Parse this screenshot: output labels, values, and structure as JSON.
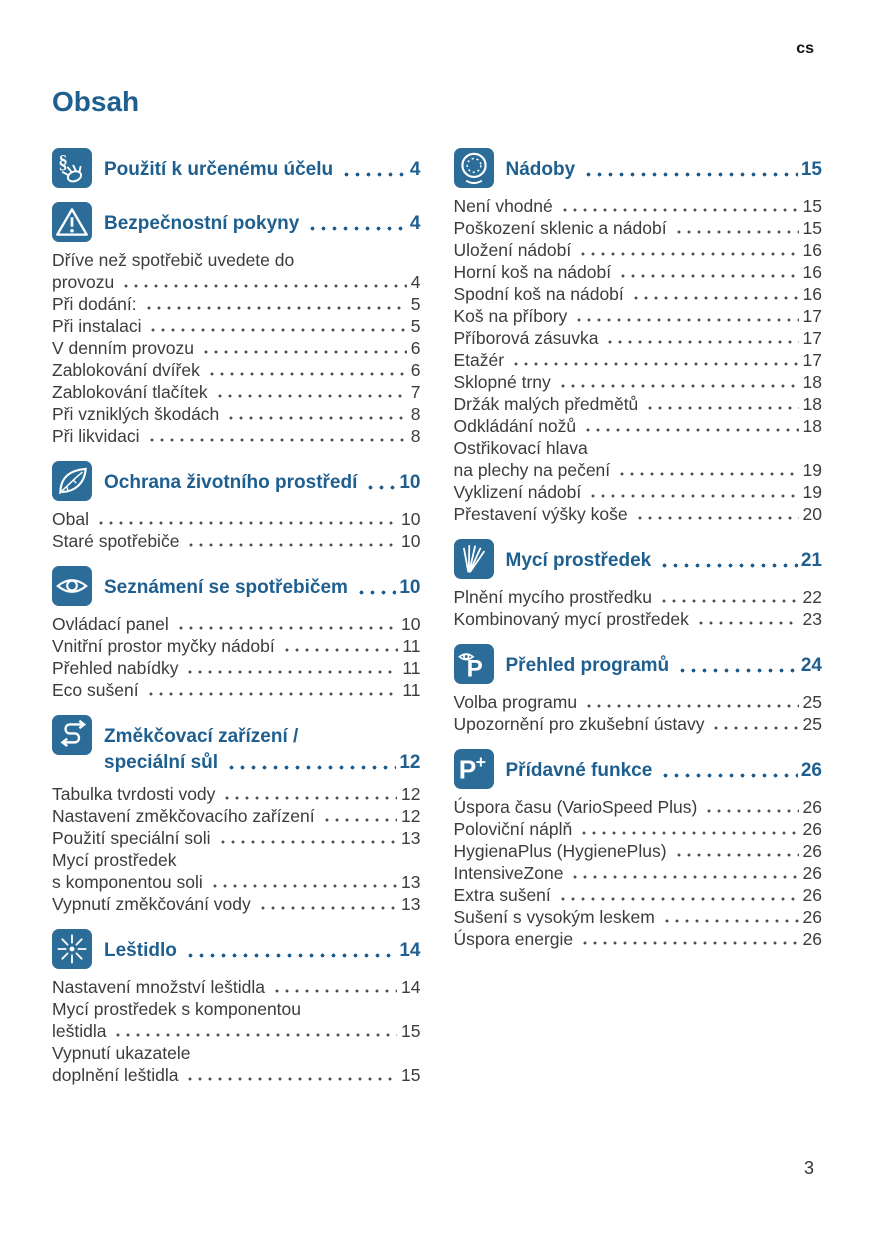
{
  "page": {
    "lang_tag": "cs",
    "title": "Obsah",
    "page_number": "3"
  },
  "colors": {
    "accent_blue": "#1e5f8f",
    "icon_background_blue": "#2b6c98",
    "body_text": "#3c3c3c"
  },
  "columns": [
    {
      "sections": [
        {
          "icon": "paragraph-hand-icon",
          "title_lines": [
            "Použití k určenému účelu"
          ],
          "page": "4",
          "entries": []
        },
        {
          "icon": "warning-triangle-icon",
          "title_lines": [
            "Bezpečnostní pokyny"
          ],
          "page": "4",
          "entries": [
            {
              "lines": [
                "Dříve než spotřebič uvedete do",
                "provozu"
              ],
              "page": "4"
            },
            {
              "lines": [
                "Při dodání:"
              ],
              "page": "5"
            },
            {
              "lines": [
                "Při instalaci"
              ],
              "page": "5"
            },
            {
              "lines": [
                "V denním provozu"
              ],
              "page": "6"
            },
            {
              "lines": [
                "Zablokování dvířek"
              ],
              "page": "6"
            },
            {
              "lines": [
                "Zablokování tlačítek"
              ],
              "page": "7"
            },
            {
              "lines": [
                "Při vzniklých škodách"
              ],
              "page": "8"
            },
            {
              "lines": [
                "Při likvidaci"
              ],
              "page": "8"
            }
          ]
        },
        {
          "icon": "leaf-icon",
          "title_lines": [
            "Ochrana životního prostředí"
          ],
          "page": "10",
          "entries": [
            {
              "lines": [
                "Obal"
              ],
              "page": "10"
            },
            {
              "lines": [
                "Staré spotřebiče"
              ],
              "page": "10"
            }
          ]
        },
        {
          "icon": "eye-icon",
          "title_lines": [
            "Seznámení se spotřebičem"
          ],
          "page": "10",
          "entries": [
            {
              "lines": [
                "Ovládací panel"
              ],
              "page": "10"
            },
            {
              "lines": [
                "Vnitřní prostor myčky nádobí"
              ],
              "page": "11"
            },
            {
              "lines": [
                "Přehled nabídky"
              ],
              "page": "11"
            },
            {
              "lines": [
                "Eco sušení"
              ],
              "page": "11"
            }
          ]
        },
        {
          "icon": "softener-icon",
          "title_lines": [
            "Změkčovací zařízení /",
            "speciální sůl"
          ],
          "page": "12",
          "entries": [
            {
              "lines": [
                "Tabulka tvrdosti vody"
              ],
              "page": "12"
            },
            {
              "lines": [
                "Nastavení změkčovacího zařízení"
              ],
              "page": "12"
            },
            {
              "lines": [
                "Použití speciální soli"
              ],
              "page": "13"
            },
            {
              "lines": [
                "Mycí prostředek",
                "s komponentou soli"
              ],
              "page": "13"
            },
            {
              "lines": [
                "Vypnutí změkčování vody"
              ],
              "page": "13"
            }
          ]
        },
        {
          "icon": "sparkle-icon",
          "title_lines": [
            "Leštidlo"
          ],
          "page": "14",
          "entries": [
            {
              "lines": [
                "Nastavení množství leštidla"
              ],
              "page": "14"
            },
            {
              "lines": [
                "Mycí prostředek s komponentou",
                "leštidla"
              ],
              "page": "15"
            },
            {
              "lines": [
                "Vypnutí ukazatele",
                "doplnění leštidla"
              ],
              "page": "15"
            }
          ]
        }
      ]
    },
    {
      "sections": [
        {
          "icon": "plate-icon",
          "title_lines": [
            "Nádoby"
          ],
          "page": "15",
          "entries": [
            {
              "lines": [
                "Není vhodné"
              ],
              "page": "15"
            },
            {
              "lines": [
                "Poškození sklenic a nádobí"
              ],
              "page": "15"
            },
            {
              "lines": [
                "Uložení nádobí"
              ],
              "page": "16"
            },
            {
              "lines": [
                "Horní koš na nádobí"
              ],
              "page": "16"
            },
            {
              "lines": [
                "Spodní koš na nádobí"
              ],
              "page": "16"
            },
            {
              "lines": [
                "Koš na příbory"
              ],
              "page": "17"
            },
            {
              "lines": [
                "Příborová zásuvka"
              ],
              "page": "17"
            },
            {
              "lines": [
                "Etažér"
              ],
              "page": "17"
            },
            {
              "lines": [
                "Sklopné trny"
              ],
              "page": "18"
            },
            {
              "lines": [
                "Držák malých předmětů"
              ],
              "page": "18"
            },
            {
              "lines": [
                "Odkládání nožů"
              ],
              "page": "18"
            },
            {
              "lines": [
                "Ostřikovací hlava",
                "na plechy na pečení"
              ],
              "page": "19"
            },
            {
              "lines": [
                "Vyklizení nádobí"
              ],
              "page": "19"
            },
            {
              "lines": [
                "Přestavení výšky koše"
              ],
              "page": "20"
            }
          ]
        },
        {
          "icon": "detergent-icon",
          "title_lines": [
            "Mycí prostředek"
          ],
          "page": "21",
          "entries": [
            {
              "lines": [
                "Plnění mycího prostředku"
              ],
              "page": "22"
            },
            {
              "lines": [
                "Kombinovaný mycí prostředek"
              ],
              "page": "23"
            }
          ]
        },
        {
          "icon": "program-eye-icon",
          "title_lines": [
            "Přehled programů"
          ],
          "page": "24",
          "entries": [
            {
              "lines": [
                "Volba programu"
              ],
              "page": "25"
            },
            {
              "lines": [
                "Upozornění pro zkušební ústavy"
              ],
              "page": "25"
            }
          ]
        },
        {
          "icon": "p-plus-icon",
          "title_lines": [
            "Přídavné funkce"
          ],
          "page": "26",
          "entries": [
            {
              "lines": [
                "Úspora času (VarioSpeed Plus)"
              ],
              "page": "26"
            },
            {
              "lines": [
                "Poloviční náplň"
              ],
              "page": "26"
            },
            {
              "lines": [
                "HygienaPlus (HygienePlus)"
              ],
              "page": "26"
            },
            {
              "lines": [
                "IntensiveZone"
              ],
              "page": "26"
            },
            {
              "lines": [
                "Extra sušení"
              ],
              "page": "26"
            },
            {
              "lines": [
                "Sušení s vysokým leskem"
              ],
              "page": "26"
            },
            {
              "lines": [
                "Úspora energie"
              ],
              "page": "26"
            }
          ]
        }
      ]
    }
  ]
}
